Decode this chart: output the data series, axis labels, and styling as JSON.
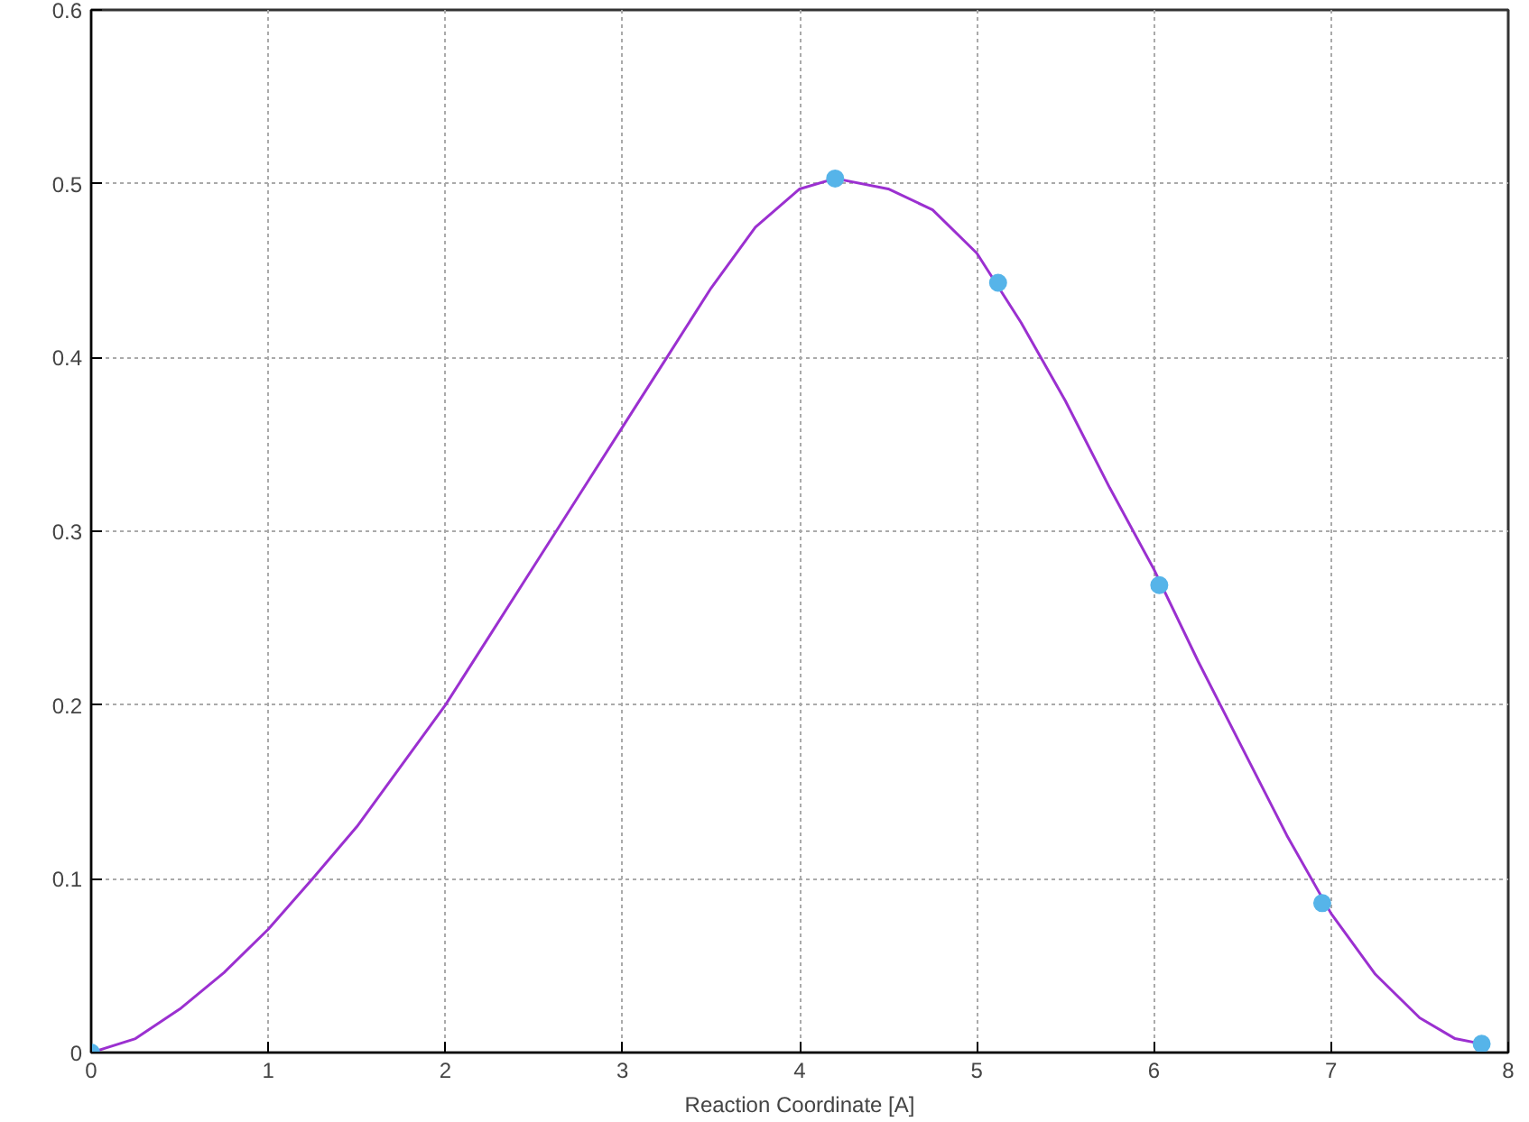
{
  "chart_data": {
    "type": "line",
    "xlabel": "Reaction Coordinate [A]",
    "xlim": [
      0,
      8
    ],
    "ylim": [
      0,
      0.6
    ],
    "xticks": [
      0,
      1,
      2,
      3,
      4,
      5,
      6,
      7,
      8
    ],
    "yticks": [
      0,
      0.1,
      0.2,
      0.3,
      0.4,
      0.5,
      0.6
    ],
    "grid": true,
    "series": [
      {
        "color": "#9b30d0",
        "marker": "none",
        "line_style": "solid",
        "x": [
          0,
          0.25,
          0.5,
          0.75,
          1,
          1.25,
          1.5,
          1.75,
          2,
          2.25,
          2.5,
          2.75,
          3,
          3.25,
          3.5,
          3.75,
          4,
          4.2,
          4.5,
          4.75,
          5,
          5.25,
          5.5,
          5.75,
          6,
          6.25,
          6.5,
          6.75,
          7,
          7.25,
          7.5,
          7.7,
          7.85
        ],
        "values": [
          0,
          0.008,
          0.025,
          0.046,
          0.071,
          0.1,
          0.13,
          0.165,
          0.2,
          0.24,
          0.28,
          0.32,
          0.36,
          0.4,
          0.44,
          0.475,
          0.497,
          0.503,
          0.497,
          0.485,
          0.46,
          0.42,
          0.375,
          0.325,
          0.278,
          0.225,
          0.175,
          0.125,
          0.08,
          0.045,
          0.02,
          0.008,
          0.005
        ]
      },
      {
        "type": "scatter",
        "color": "#56b4e9",
        "marker": "circle",
        "x": [
          0,
          4.2,
          5.12,
          6.03,
          6.95,
          7.85
        ],
        "values": [
          0,
          0.503,
          0.443,
          0.269,
          0.086,
          0.005
        ]
      }
    ]
  }
}
